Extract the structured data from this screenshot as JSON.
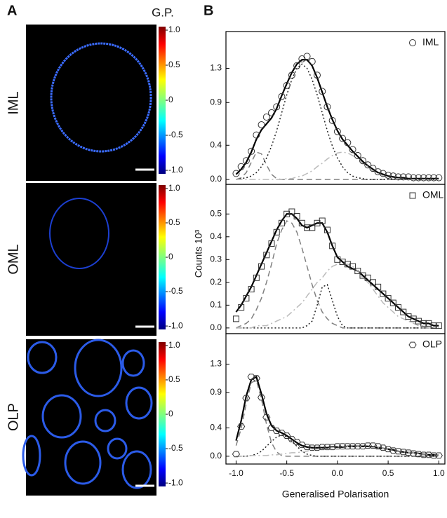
{
  "panel_a": {
    "letter": "A",
    "rows": [
      "IML",
      "OML",
      "OLP"
    ],
    "colorbar": {
      "title": "G.P.",
      "lim": [
        -1.05,
        1.05
      ],
      "ticks": [
        {
          "value": 1,
          "label": "1.0"
        },
        0.5,
        0,
        -0.5,
        {
          "value": -1,
          "label": "-1.0"
        }
      ]
    }
  },
  "panel_b": {
    "letter": "B",
    "y_label": "Counts 10³",
    "x_label": "Generalised Polarisation"
  },
  "chart_data": [
    {
      "type": "line",
      "legend": "upper right",
      "xlim": [
        -1.1,
        1.06
      ],
      "ylim": [
        -0.057,
        1.73
      ],
      "yticks": [
        {
          "value": 0,
          "label": "0.0"
        },
        0.4,
        0.9,
        1.3
      ],
      "x": [
        -1,
        -0.95,
        -0.9,
        -0.85,
        -0.8,
        -0.75,
        -0.7,
        -0.65,
        -0.6,
        -0.55,
        -0.5,
        -0.45,
        -0.4,
        -0.35,
        -0.3,
        -0.25,
        -0.2,
        -0.15,
        -0.1,
        -0.05,
        0,
        0.05,
        0.1,
        0.15,
        0.2,
        0.25,
        0.3,
        0.35,
        0.4,
        0.45,
        0.5,
        0.55,
        0.6,
        0.65,
        0.7,
        0.75,
        0.8,
        0.85,
        0.9,
        0.95,
        1
      ],
      "series": [
        {
          "name": "IML",
          "marker": "circle",
          "color": "#333333",
          "values": [
            0.07,
            0.15,
            0.22,
            0.33,
            0.52,
            0.64,
            0.73,
            0.78,
            0.85,
            0.97,
            1.1,
            1.22,
            1.33,
            1.41,
            1.44,
            1.38,
            1.22,
            1.03,
            0.85,
            0.69,
            0.56,
            0.48,
            0.43,
            0.35,
            0.28,
            0.22,
            0.17,
            0.13,
            0.09,
            0.07,
            0.05,
            0.04,
            0.03,
            0.03,
            0.03,
            0.02,
            0.02,
            0.02,
            0.02,
            0.02,
            0.02
          ]
        },
        {
          "line_style": "solid",
          "color": "#000000",
          "values": [
            0.06,
            0.12,
            0.2,
            0.32,
            0.47,
            0.58,
            0.65,
            0.72,
            0.83,
            0.98,
            1.12,
            1.25,
            1.35,
            1.4,
            1.4,
            1.33,
            1.19,
            1.02,
            0.85,
            0.7,
            0.57,
            0.47,
            0.4,
            0.33,
            0.27,
            0.21,
            0.16,
            0.12,
            0.08,
            0.06,
            0.04,
            0.03,
            0.02,
            0.02,
            0.01,
            0.01,
            0.01,
            0.01,
            0.01,
            0.01,
            0.01
          ]
        },
        {
          "line_style": "dashed",
          "color": "#808080",
          "values": [
            0,
            0.02,
            0.08,
            0.2,
            0.32,
            0.3,
            0.17,
            0.06,
            0.01,
            0,
            0,
            0,
            0,
            0,
            0,
            0,
            0,
            0,
            0,
            0,
            0,
            0,
            0,
            0,
            0,
            0,
            0,
            0,
            0,
            0,
            0,
            0,
            0,
            0,
            0,
            0,
            0,
            0,
            0,
            0,
            0
          ]
        },
        {
          "line_style": "dotted",
          "color": "#222222",
          "values": [
            0,
            0.01,
            0.02,
            0.04,
            0.08,
            0.15,
            0.25,
            0.39,
            0.57,
            0.78,
            0.99,
            1.17,
            1.3,
            1.35,
            1.3,
            1.17,
            0.99,
            0.78,
            0.57,
            0.39,
            0.25,
            0.15,
            0.08,
            0.04,
            0.02,
            0.01,
            0,
            0,
            0,
            0,
            0,
            0,
            0,
            0,
            0,
            0,
            0,
            0,
            0,
            0,
            0
          ]
        },
        {
          "line_style": "dashdot",
          "color": "#bbbbbb",
          "values": [
            0,
            0,
            0,
            0,
            0,
            0,
            0,
            0,
            0,
            0,
            0.01,
            0.01,
            0.03,
            0.04,
            0.07,
            0.1,
            0.15,
            0.19,
            0.24,
            0.28,
            0.31,
            0.32,
            0.31,
            0.28,
            0.24,
            0.19,
            0.15,
            0.1,
            0.07,
            0.04,
            0.03,
            0.01,
            0.01,
            0,
            0,
            0,
            0,
            0,
            0,
            0,
            0
          ]
        }
      ]
    },
    {
      "type": "line",
      "legend": "upper right",
      "xlim": [
        -1.1,
        1.06
      ],
      "ylim": [
        -0.025,
        0.63
      ],
      "yticks": [
        {
          "value": 0,
          "label": "0.0"
        },
        0.1,
        0.2,
        0.3,
        0.4,
        0.5
      ],
      "x": [
        -1,
        -0.95,
        -0.9,
        -0.85,
        -0.8,
        -0.75,
        -0.7,
        -0.65,
        -0.6,
        -0.55,
        -0.5,
        -0.45,
        -0.4,
        -0.35,
        -0.3,
        -0.25,
        -0.2,
        -0.15,
        -0.1,
        -0.05,
        0,
        0.05,
        0.1,
        0.15,
        0.2,
        0.25,
        0.3,
        0.35,
        0.4,
        0.45,
        0.5,
        0.55,
        0.6,
        0.65,
        0.7,
        0.75,
        0.8,
        0.85,
        0.9,
        0.95,
        1
      ],
      "series": [
        {
          "name": "OML",
          "marker": "square",
          "color": "#333333",
          "values": [
            0.04,
            0.09,
            0.13,
            0.17,
            0.22,
            0.27,
            0.32,
            0.37,
            0.42,
            0.46,
            0.5,
            0.51,
            0.49,
            0.46,
            0.44,
            0.44,
            0.46,
            0.47,
            0.43,
            0.36,
            0.3,
            0.29,
            0.28,
            0.27,
            0.25,
            0.23,
            0.22,
            0.2,
            0.18,
            0.15,
            0.13,
            0.11,
            0.09,
            0.07,
            0.05,
            0.04,
            0.03,
            0.02,
            0.02,
            0.01,
            0.01
          ]
        },
        {
          "line_style": "solid",
          "color": "#000000",
          "values": [
            0.07,
            0.1,
            0.14,
            0.18,
            0.23,
            0.28,
            0.33,
            0.38,
            0.43,
            0.47,
            0.5,
            0.5,
            0.48,
            0.45,
            0.44,
            0.45,
            0.46,
            0.46,
            0.42,
            0.36,
            0.31,
            0.29,
            0.27,
            0.26,
            0.25,
            0.23,
            0.21,
            0.19,
            0.17,
            0.15,
            0.13,
            0.11,
            0.09,
            0.07,
            0.05,
            0.04,
            0.03,
            0.02,
            0.02,
            0.01,
            0.01
          ]
        },
        {
          "line_style": "dashed",
          "color": "#808080",
          "values": [
            0,
            0.01,
            0.02,
            0.04,
            0.08,
            0.13,
            0.2,
            0.28,
            0.37,
            0.43,
            0.47,
            0.46,
            0.42,
            0.35,
            0.27,
            0.19,
            0.12,
            0.07,
            0.04,
            0.02,
            0.01,
            0,
            0,
            0,
            0,
            0,
            0,
            0,
            0,
            0,
            0,
            0,
            0,
            0,
            0,
            0,
            0,
            0,
            0,
            0,
            0
          ]
        },
        {
          "line_style": "dotted",
          "color": "#222222",
          "values": [
            0,
            0,
            0,
            0,
            0,
            0,
            0,
            0,
            0,
            0,
            0,
            0,
            0,
            0,
            0.01,
            0.03,
            0.1,
            0.18,
            0.19,
            0.12,
            0.05,
            0.01,
            0,
            0,
            0,
            0,
            0,
            0,
            0,
            0,
            0,
            0,
            0,
            0,
            0,
            0,
            0,
            0,
            0,
            0,
            0
          ]
        },
        {
          "line_style": "dashdot",
          "color": "#bbbbbb",
          "values": [
            0,
            0,
            0,
            0,
            0.01,
            0.01,
            0.01,
            0.02,
            0.03,
            0.04,
            0.05,
            0.07,
            0.09,
            0.11,
            0.14,
            0.17,
            0.2,
            0.22,
            0.25,
            0.27,
            0.28,
            0.28,
            0.28,
            0.27,
            0.25,
            0.22,
            0.2,
            0.17,
            0.14,
            0.11,
            0.09,
            0.07,
            0.05,
            0.04,
            0.03,
            0.02,
            0.01,
            0.01,
            0,
            0,
            0
          ]
        }
      ]
    },
    {
      "type": "line",
      "legend": "upper right",
      "xlim": [
        -1.1,
        1.06
      ],
      "ylim": [
        -0.11,
        1.73
      ],
      "yticks": [
        {
          "value": 0,
          "label": "0.0"
        },
        0.4,
        0.9,
        1.3
      ],
      "xticks": [
        {
          "value": -1,
          "label": "-1.0"
        },
        -0.5,
        {
          "value": 0,
          "label": "0.0"
        },
        0.5,
        {
          "value": 1,
          "label": "1.0"
        }
      ],
      "x": [
        -1,
        -0.95,
        -0.9,
        -0.85,
        -0.8,
        -0.75,
        -0.7,
        -0.65,
        -0.6,
        -0.55,
        -0.5,
        -0.45,
        -0.4,
        -0.35,
        -0.3,
        -0.25,
        -0.2,
        -0.15,
        -0.1,
        -0.05,
        0,
        0.05,
        0.1,
        0.15,
        0.2,
        0.25,
        0.3,
        0.35,
        0.4,
        0.45,
        0.5,
        0.55,
        0.6,
        0.65,
        0.7,
        0.75,
        0.8,
        0.85,
        0.9,
        0.95,
        1
      ],
      "series": [
        {
          "name": "OLP",
          "marker": "hexagon",
          "color": "#333333",
          "values": [
            0.03,
            0.42,
            0.82,
            1.12,
            1.1,
            0.83,
            0.55,
            0.4,
            0.36,
            0.33,
            0.29,
            0.24,
            0.2,
            0.16,
            0.13,
            0.12,
            0.12,
            0.13,
            0.13,
            0.13,
            0.14,
            0.14,
            0.14,
            0.14,
            0.14,
            0.14,
            0.15,
            0.15,
            0.14,
            0.12,
            0.1,
            0.08,
            0.07,
            0.06,
            0.05,
            0.04,
            0.03,
            0.02,
            0.02,
            0.01,
            0.01
          ]
        },
        {
          "line_style": "solid",
          "color": "#000000",
          "values": [
            0.22,
            0.5,
            0.85,
            1.08,
            1.12,
            0.88,
            0.6,
            0.43,
            0.36,
            0.33,
            0.29,
            0.24,
            0.19,
            0.15,
            0.13,
            0.12,
            0.12,
            0.12,
            0.12,
            0.13,
            0.13,
            0.13,
            0.14,
            0.14,
            0.14,
            0.14,
            0.14,
            0.13,
            0.12,
            0.11,
            0.1,
            0.09,
            0.07,
            0.06,
            0.05,
            0.05,
            0.04,
            0.03,
            0.02,
            0.02,
            0.01
          ]
        },
        {
          "line_style": "dashed",
          "color": "#808080",
          "values": [
            0.15,
            0.39,
            0.74,
            1.04,
            1.07,
            0.81,
            0.45,
            0.19,
            0.06,
            0.01,
            0,
            0,
            0,
            0,
            0,
            0,
            0,
            0,
            0,
            0,
            0,
            0,
            0,
            0,
            0,
            0,
            0,
            0,
            0,
            0,
            0,
            0,
            0,
            0,
            0,
            0,
            0,
            0,
            0,
            0,
            0
          ]
        },
        {
          "line_style": "dotted",
          "color": "#222222",
          "values": [
            0,
            0,
            0,
            0.01,
            0.03,
            0.07,
            0.14,
            0.21,
            0.27,
            0.3,
            0.27,
            0.21,
            0.14,
            0.07,
            0.03,
            0.01,
            0,
            0,
            0,
            0,
            0,
            0,
            0,
            0,
            0,
            0,
            0,
            0,
            0,
            0,
            0,
            0,
            0,
            0,
            0,
            0,
            0,
            0,
            0,
            0,
            0
          ]
        },
        {
          "line_style": "dashdot",
          "color": "#bbbbbb",
          "values": [
            0,
            0,
            0,
            0.01,
            0.01,
            0.01,
            0.01,
            0.02,
            0.02,
            0.03,
            0.04,
            0.05,
            0.05,
            0.06,
            0.07,
            0.09,
            0.1,
            0.11,
            0.12,
            0.12,
            0.13,
            0.14,
            0.14,
            0.14,
            0.14,
            0.14,
            0.13,
            0.12,
            0.12,
            0.11,
            0.1,
            0.09,
            0.07,
            0.06,
            0.05,
            0.05,
            0.04,
            0.03,
            0.02,
            0.02,
            0.01
          ]
        }
      ]
    }
  ]
}
